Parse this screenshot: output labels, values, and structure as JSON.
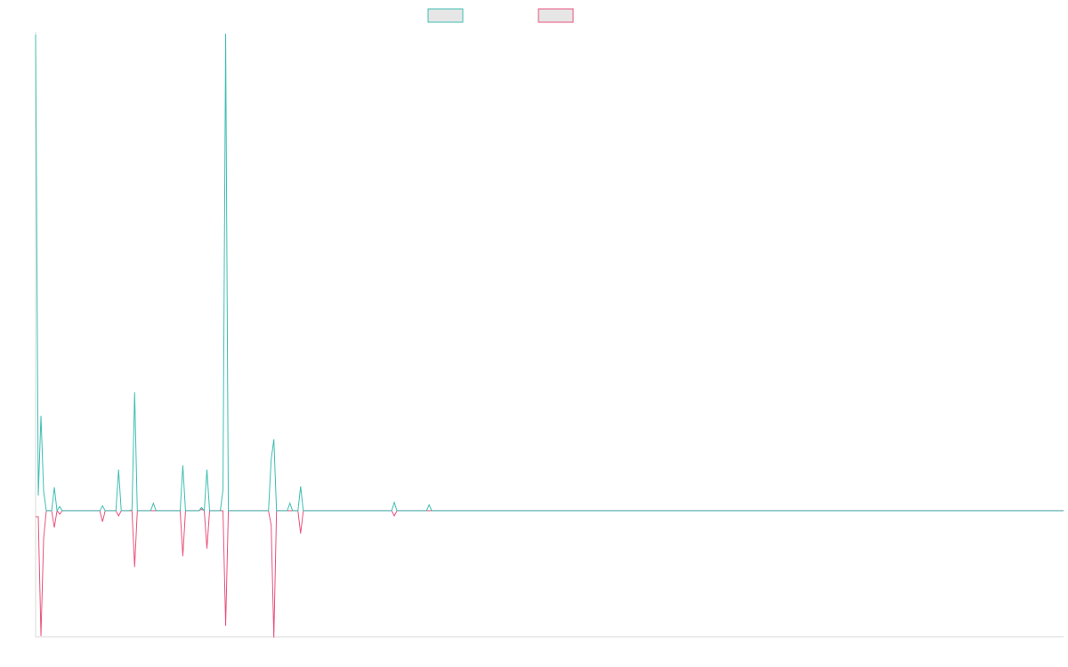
{
  "colors": {
    "background": "#ffffff",
    "series_a": "#3fbfb2",
    "series_b": "#e8537e",
    "legend_fill": "#e6e6e6",
    "axis": "#d9d9d9"
  },
  "chart_data": {
    "type": "line",
    "title": "",
    "xlabel": "",
    "ylabel": "",
    "grid": false,
    "legend_position": "top-center",
    "x_count": 385,
    "ylim": [
      -1.5,
      5.7
    ],
    "series": [
      {
        "color": "#3fbfb2",
        "values": [
          5.67,
          0.18,
          1.13,
          0.23,
          0,
          0,
          0,
          0.28,
          0,
          0.05,
          0,
          0,
          0,
          0,
          0,
          0,
          0,
          0,
          0,
          0,
          0,
          0,
          0,
          0,
          0,
          0.06,
          0,
          0,
          0,
          0,
          0,
          0.49,
          0,
          0,
          0,
          0,
          0.01,
          1.41,
          0,
          0,
          0,
          0,
          0,
          0,
          0.09,
          0,
          0,
          0,
          0,
          0,
          0,
          0,
          0,
          0,
          0,
          0.54,
          0,
          0,
          0,
          0,
          0,
          0,
          0.04,
          0,
          0.49,
          0,
          0,
          0,
          0,
          0,
          0.25,
          5.68,
          0,
          0,
          0,
          0,
          0,
          0,
          0,
          0,
          0,
          0,
          0,
          0,
          0,
          0,
          0,
          0,
          0.61,
          0.85,
          0,
          0,
          0,
          0,
          0,
          0.09,
          0,
          0,
          0,
          0.29,
          0,
          0,
          0,
          0,
          0,
          0,
          0,
          0,
          0,
          0,
          0,
          0,
          0,
          0,
          0,
          0,
          0,
          0,
          0,
          0,
          0,
          0,
          0,
          0,
          0,
          0,
          0,
          0,
          0,
          0,
          0,
          0,
          0,
          0,
          0.1,
          0,
          0,
          0,
          0,
          0,
          0,
          0,
          0,
          0,
          0,
          0,
          0,
          0.07,
          0,
          0
        ]
      },
      {
        "color": "#e8537e",
        "values": [
          -0.07,
          -0.07,
          -1.49,
          -0.33,
          0,
          0,
          0,
          -0.2,
          0,
          -0.04,
          0,
          0,
          0,
          0,
          0,
          0,
          0,
          0,
          0,
          0,
          0,
          0,
          0,
          0,
          0,
          -0.13,
          0,
          0,
          0,
          0,
          0,
          -0.06,
          0,
          0,
          0,
          0,
          0,
          -0.67,
          0,
          0,
          0,
          0,
          0,
          0,
          0,
          0,
          0,
          0,
          0,
          0,
          0,
          0,
          0,
          0,
          0,
          -0.54,
          0,
          0,
          0,
          0,
          0,
          0,
          0.02,
          0,
          -0.45,
          0,
          0,
          0,
          0,
          0,
          0,
          -1.37,
          0,
          0,
          0,
          0,
          0,
          0,
          0,
          0,
          0,
          0,
          0,
          0,
          0,
          0,
          0,
          0,
          -0.17,
          -1.51,
          0,
          0,
          0,
          0,
          0,
          0,
          0,
          0,
          0,
          -0.27,
          0,
          0,
          0,
          0,
          0,
          0,
          0,
          0,
          0,
          0,
          0,
          0,
          0,
          0,
          0,
          0,
          0,
          0,
          0,
          0,
          0,
          0,
          0,
          0,
          0,
          0,
          0,
          0,
          0,
          0,
          0,
          0,
          0,
          0,
          -0.06,
          0,
          0,
          0,
          0,
          0,
          0,
          0,
          0,
          0,
          0,
          0,
          0,
          0,
          0,
          0
        ]
      }
    ]
  }
}
